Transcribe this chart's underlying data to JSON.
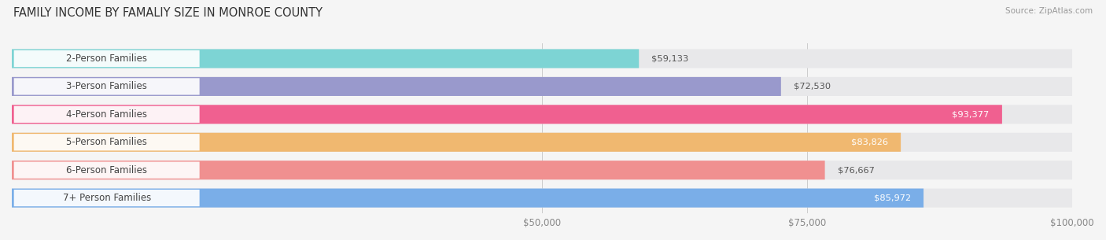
{
  "title": "FAMILY INCOME BY FAMALIY SIZE IN MONROE COUNTY",
  "source": "Source: ZipAtlas.com",
  "categories": [
    "2-Person Families",
    "3-Person Families",
    "4-Person Families",
    "5-Person Families",
    "6-Person Families",
    "7+ Person Families"
  ],
  "values": [
    59133,
    72530,
    93377,
    83826,
    76667,
    85972
  ],
  "bar_colors": [
    "#7dd4d4",
    "#9999cc",
    "#f06090",
    "#f0b870",
    "#f09090",
    "#7aaee8"
  ],
  "label_colors": [
    "#333333",
    "#333333",
    "#ffffff",
    "#ffffff",
    "#333333",
    "#ffffff"
  ],
  "xlim": [
    0,
    100000
  ],
  "bg_color": "#f5f5f5",
  "bar_bg_color": "#e8e8ea",
  "title_fontsize": 10.5,
  "label_fontsize": 8.5,
  "value_fontsize": 8.2
}
